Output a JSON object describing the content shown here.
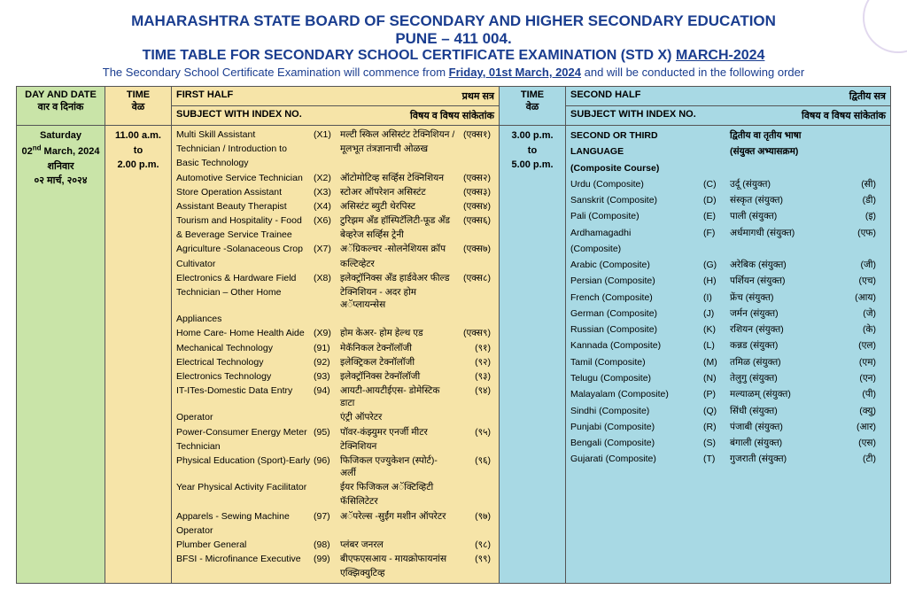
{
  "header": {
    "title": "MAHARASHTRA STATE BOARD OF SECONDARY AND HIGHER SECONDARY EDUCATION",
    "location": "PUNE – 411 004.",
    "subtitle_left": "TIME TABLE FOR SECONDARY SCHOOL CERTIFICATE EXAMINATION (STD X) ",
    "subtitle_right": "MARCH-2024",
    "description_left": "The Secondary School Certificate Examination will commence from ",
    "description_bold": "Friday, 01st March, 2024",
    "description_right": " and will be conducted in the following order"
  },
  "columns": {
    "date": "DAY AND DATE",
    "date_mar": "वार व दिनांक",
    "time": "TIME",
    "time_mar": "वेळ",
    "first_half": "FIRST HALF",
    "first_half_mar": "प्रथम सत्र",
    "second_half": "SECOND HALF",
    "second_half_mar": "द्वितीय सत्र",
    "subject_with_index": "SUBJECT WITH INDEX NO.",
    "subject_mar": "विषय व विषय सांकेतांक"
  },
  "row": {
    "day": "Saturday",
    "date_en": "02nd March, 2024",
    "date_mar1": "शनिवार",
    "date_mar2": "०२ मार्च, २०२४",
    "time1_from": "11.00 a.m.",
    "time1_to": "to",
    "time1_end": "2.00 p.m.",
    "time2_from": "3.00 p.m.",
    "time2_to": "to",
    "time2_end": "5.00 p.m."
  },
  "first": [
    {
      "name": "Multi Skill Assistant",
      "code": "(X1)",
      "mar": "मल्टी स्किल असिस्टंट टेक्निशियन /",
      "ucode": "(एक्स१)"
    },
    {
      "name": "Technician / Introduction to",
      "code": "",
      "mar": "मूलभूत तंत्रज्ञानाची ओळख",
      "ucode": ""
    },
    {
      "name": "Basic Technology",
      "code": "",
      "mar": "",
      "ucode": ""
    },
    {
      "name": "Automotive Service Technician",
      "code": "(X2)",
      "mar": "ऑटोमोटिव्ह सर्व्हिस टेक्निशियन",
      "ucode": "(एक्स२)"
    },
    {
      "name": "Store Operation Assistant",
      "code": "(X3)",
      "mar": "स्टोअर ऑपरेशन असिस्टंट",
      "ucode": "(एक्स३)"
    },
    {
      "name": "Assistant Beauty Therapist",
      "code": "(X4)",
      "mar": "असिस्टंट ब्युटी थेरपिस्ट",
      "ucode": "(एक्स४)"
    },
    {
      "name": "Tourism and Hospitality - Food",
      "code": "(X6)",
      "mar": "टुरिझम अँड हॉस्पिटॅलिटी-फूड अँड",
      "ucode": "(एक्स६)"
    },
    {
      "name": "& Beverage Service Trainee",
      "code": "",
      "mar": "बेव्हरेज सर्व्हिस ट्रेनी",
      "ucode": ""
    },
    {
      "name": "Agriculture -Solanaceous Crop",
      "code": "(X7)",
      "mar": "अॅग्रिकल्चर -सोलनेशियस क्रॉप",
      "ucode": "(एक्स७)"
    },
    {
      "name": "Cultivator",
      "code": "",
      "mar": "कल्टिव्हेटर",
      "ucode": ""
    },
    {
      "name": "Electronics & Hardware Field",
      "code": "(X8)",
      "mar": "इलेक्ट्रॉनिक्स अँड हार्डवेअर फील्ड",
      "ucode": "(एक्स८)"
    },
    {
      "name": "Technician – Other Home",
      "code": "",
      "mar": "टेक्निशियन - अदर होम अॅप्लायन्सेस",
      "ucode": ""
    },
    {
      "name": "Appliances",
      "code": "",
      "mar": "",
      "ucode": ""
    },
    {
      "name": "Home Care- Home Health Aide",
      "code": "(X9)",
      "mar": "होम केअर- होम हेल्थ एड",
      "ucode": "(एक्स९)"
    },
    {
      "name": "Mechanical Technology",
      "code": "(91)",
      "mar": "मेकॅनिकल टेक्नॉलॉजी",
      "ucode": "(९१)"
    },
    {
      "name": "Electrical Technology",
      "code": "(92)",
      "mar": "इलेक्ट्रिकल टेक्नॉलॉजी",
      "ucode": "(९२)"
    },
    {
      "name": "Electronics Technology",
      "code": "(93)",
      "mar": "इलेक्ट्रॉनिक्स टेक्नॉलॉजी",
      "ucode": "(९३)"
    },
    {
      "name": "IT-ITes-Domestic Data Entry",
      "code": "(94)",
      "mar": "आयटी-आयटीईएस- डोमेस्टिक डाटा",
      "ucode": "(९४)"
    },
    {
      "name": "Operator",
      "code": "",
      "mar": "एंट्री ऑपरेटर",
      "ucode": ""
    },
    {
      "name": "Power-Consumer Energy Meter",
      "code": "(95)",
      "mar": "पॉवर-कंझ्युमर एनर्जी मीटर",
      "ucode": "(९५)"
    },
    {
      "name": "Technician",
      "code": "",
      "mar": "टेक्निशियन",
      "ucode": ""
    },
    {
      "name": "Physical Education (Sport)-Early",
      "code": "(96)",
      "mar": "फिजिकल एज्युकेशन (स्पोर्ट)- अर्ली",
      "ucode": "(९६)"
    },
    {
      "name": "Year Physical Activity Facilitator",
      "code": "",
      "mar": "ईयर फिजिकल अॅक्टिव्हिटी",
      "ucode": ""
    },
    {
      "name": "",
      "code": "",
      "mar": "फॅसिलिटेटर",
      "ucode": ""
    },
    {
      "name": "Apparels - Sewing Machine",
      "code": "(97)",
      "mar": "अॅपरेल्स -सुईंग मशीन ऑपरेटर",
      "ucode": "(९७)"
    },
    {
      "name": "Operator",
      "code": "",
      "mar": "",
      "ucode": ""
    },
    {
      "name": "Plumber General",
      "code": "(98)",
      "mar": "प्लंबर जनरल",
      "ucode": "(९८)"
    },
    {
      "name": "BFSI - Microfinance Executive",
      "code": "(99)",
      "mar": "बीएफएसआय - मायक्रोफायनांस",
      "ucode": "(९९)"
    },
    {
      "name": "",
      "code": "",
      "mar": "एक्झिक्युटिव्ह",
      "ucode": ""
    }
  ],
  "second_header": {
    "title_en1": "SECOND OR THIRD",
    "title_en2": "LANGUAGE",
    "title_en3": "(Composite Course)",
    "title_mar1": "द्वितीय वा तृतीय भाषा",
    "title_mar2": "(संयुक्त अभ्यासक्रम)"
  },
  "second": [
    {
      "name": "Urdu (Composite)",
      "code": "(C)",
      "mar": "उर्दू (संयुक्त)",
      "ucode": "(सी)"
    },
    {
      "name": "Sanskrit (Composite)",
      "code": "(D)",
      "mar": "संस्कृत (संयुक्त)",
      "ucode": "(डी)"
    },
    {
      "name": "Pali (Composite)",
      "code": "(E)",
      "mar": "पाली (संयुक्त)",
      "ucode": "(इ)"
    },
    {
      "name": "Ardhamagadhi",
      "code": "(F)",
      "mar": "अर्धमागधी (संयुक्त)",
      "ucode": "(एफ)"
    },
    {
      "name": "(Composite)",
      "code": "",
      "mar": "",
      "ucode": ""
    },
    {
      "name": "Arabic (Composite)",
      "code": "(G)",
      "mar": "अरेबिक (संयुक्त)",
      "ucode": "(जी)"
    },
    {
      "name": "Persian (Composite)",
      "code": "(H)",
      "mar": "पर्शियन (संयुक्त)",
      "ucode": "(एच)"
    },
    {
      "name": "French (Composite)",
      "code": "(I)",
      "mar": "फ्रेंच (संयुक्त)",
      "ucode": "(आय)"
    },
    {
      "name": "German (Composite)",
      "code": "(J)",
      "mar": "जर्मन (संयुक्त)",
      "ucode": "(जे)"
    },
    {
      "name": "Russian (Composite)",
      "code": "(K)",
      "mar": "रशियन (संयुक्त)",
      "ucode": "(के)"
    },
    {
      "name": "Kannada (Composite)",
      "code": "(L)",
      "mar": "कन्नड (संयुक्त)",
      "ucode": "(एल)"
    },
    {
      "name": "Tamil (Composite)",
      "code": "(M)",
      "mar": "तमिळ (संयुक्त)",
      "ucode": "(एम)"
    },
    {
      "name": "Telugu (Composite)",
      "code": "(N)",
      "mar": "तेलुगु (संयुक्त)",
      "ucode": "(एन)"
    },
    {
      "name": "Malayalam (Composite)",
      "code": "(P)",
      "mar": "मल्याळम् (संयुक्त)",
      "ucode": "(पी)"
    },
    {
      "name": "Sindhi (Composite)",
      "code": "(Q)",
      "mar": "सिंधी (संयुक्त)",
      "ucode": "(क्यु)"
    },
    {
      "name": "Punjabi (Composite)",
      "code": "(R)",
      "mar": "पंजाबी (संयुक्त)",
      "ucode": "(आर)"
    },
    {
      "name": "Bengali (Composite)",
      "code": "(S)",
      "mar": "बंगाली (संयुक्त)",
      "ucode": "(एस)"
    },
    {
      "name": "Gujarati (Composite)",
      "code": "(T)",
      "mar": "गुजराती (संयुक्त)",
      "ucode": "(टी)"
    }
  ]
}
